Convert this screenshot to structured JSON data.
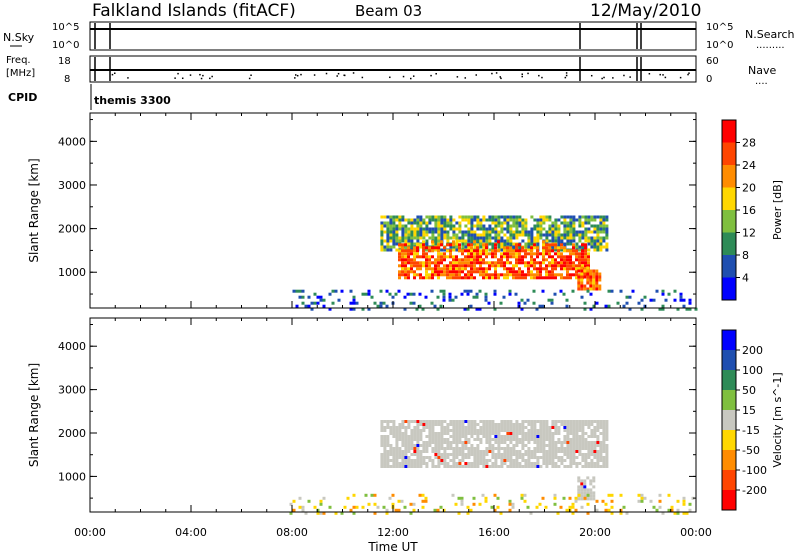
{
  "header": {
    "station": "Falkland Islands (fitACF)",
    "beam": "Beam 03",
    "date": "12/May/2010"
  },
  "status_panels": {
    "nsky": {
      "label": "N.Sky",
      "ticks": [
        "10^5",
        "10^0"
      ]
    },
    "nsearch": {
      "label": "N.Search",
      "ticks": [
        "10^5",
        "10^0"
      ]
    },
    "freq": {
      "label_line1": "Freq.",
      "label_line2": "[MHz]",
      "ticks": [
        "18",
        "8"
      ]
    },
    "nave": {
      "label": "Nave",
      "ticks": [
        "60",
        "0"
      ]
    },
    "cpid": {
      "label": "CPID",
      "value": "themis 3300"
    }
  },
  "chart_data": [
    {
      "type": "heatmap",
      "title": "",
      "parameter": "Power",
      "xlabel": "",
      "ylabel": "Slant Range [km]",
      "x_ticks": [
        "00:00",
        "04:00",
        "08:00",
        "12:00",
        "16:00",
        "20:00",
        "00:00"
      ],
      "x_range_hours": [
        0,
        24
      ],
      "y_ticks": [
        1000,
        2000,
        3000,
        4000
      ],
      "y_range_km": [
        180,
        4650
      ],
      "colorbar": {
        "label": "Power [dB]",
        "ticks": [
          "4",
          "8",
          "12",
          "16",
          "20",
          "24",
          "28"
        ],
        "range": [
          0,
          32
        ],
        "colors": [
          "#0000ff",
          "#1f4fb0",
          "#2e8b57",
          "#7fbf3f",
          "#ffd700",
          "#ff8c00",
          "#ff4500",
          "#ff0000"
        ]
      },
      "regions": [
        {
          "hours": [
            11.5,
            20.5
          ],
          "range_km": [
            1500,
            2300
          ],
          "level": "mid"
        },
        {
          "hours": [
            12.2,
            19.8
          ],
          "range_km": [
            900,
            1800
          ],
          "level": "high"
        },
        {
          "hours": [
            19.3,
            20.2
          ],
          "range_km": [
            600,
            1200
          ],
          "level": "high"
        },
        {
          "hours": [
            7.9,
            24.0
          ],
          "range_km": [
            180,
            600
          ],
          "level": "low"
        }
      ]
    },
    {
      "type": "heatmap",
      "title": "",
      "parameter": "Velocity",
      "xlabel": "Time UT",
      "ylabel": "Slant Range [km]",
      "x_ticks": [
        "00:00",
        "04:00",
        "08:00",
        "12:00",
        "16:00",
        "20:00",
        "00:00"
      ],
      "x_range_hours": [
        0,
        24
      ],
      "y_ticks": [
        1000,
        2000,
        3000,
        4000
      ],
      "y_range_km": [
        180,
        4650
      ],
      "colorbar": {
        "label": "Velocity [m s^-1]",
        "ticks": [
          "200",
          "100",
          "50",
          "15",
          "-15",
          "-50",
          "-100",
          "-200"
        ],
        "colors": [
          "#0000ff",
          "#1f4fb0",
          "#2e8b57",
          "#7fbf3f",
          "#c8c8c0",
          "#ffd700",
          "#ff8c00",
          "#ff4500",
          "#ff0000"
        ]
      },
      "regions": [
        {
          "hours": [
            11.5,
            20.5
          ],
          "range_km": [
            1200,
            2300
          ],
          "level": "ground"
        },
        {
          "hours": [
            19.3,
            20.0
          ],
          "range_km": [
            500,
            1000
          ],
          "level": "ground"
        },
        {
          "hours": [
            7.9,
            24.0
          ],
          "range_km": [
            180,
            600
          ],
          "level": "low"
        }
      ]
    }
  ]
}
